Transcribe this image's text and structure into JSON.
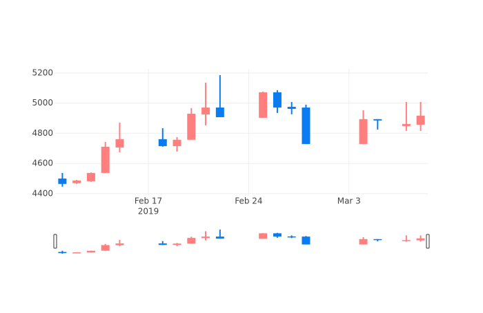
{
  "chart_data": {
    "type": "candlestick",
    "x": [
      "2019-02-11",
      "2019-02-12",
      "2019-02-13",
      "2019-02-14",
      "2019-02-15",
      "2019-02-18",
      "2019-02-19",
      "2019-02-20",
      "2019-02-21",
      "2019-02-22",
      "2019-02-25",
      "2019-02-26",
      "2019-02-27",
      "2019-02-28",
      "2019-03-04",
      "2019-03-05",
      "2019-03-07",
      "2019-03-08"
    ],
    "open": [
      4500,
      4469,
      4482,
      4537,
      4706,
      4761,
      4715,
      4757,
      4925,
      4971,
      4903,
      5072,
      4976,
      4971,
      4729,
      4894,
      4848,
      4857
    ],
    "high": [
      4537,
      4491,
      4540,
      4743,
      4871,
      4834,
      4775,
      4967,
      5136,
      5186,
      5077,
      5086,
      5008,
      4990,
      4953,
      4894,
      5008,
      5008
    ],
    "low": [
      4446,
      4464,
      4478,
      4537,
      4674,
      4711,
      4679,
      4757,
      4853,
      4907,
      4903,
      4935,
      4926,
      4729,
      4729,
      4825,
      4816,
      4816
    ],
    "close": [
      4464,
      4487,
      4537,
      4711,
      4761,
      4715,
      4757,
      4930,
      4971,
      4907,
      5072,
      4971,
      4962,
      4729,
      4894,
      4885,
      4862,
      4917
    ],
    "increasing_color": "#ff7f7f",
    "decreasing_color": "#0b7cf0",
    "xlim": [
      "2019-02-10T12:00:00Z",
      "2019-03-08T12:00:00Z"
    ],
    "xticks": [
      {
        "value": "2019-02-17",
        "label": "Feb 17"
      },
      {
        "value": "2019-02-24",
        "label": "Feb 24"
      },
      {
        "value": "2019-03-03",
        "label": "Mar 3"
      }
    ],
    "xtick_year": "2019",
    "ylim": [
      4390,
      5227
    ],
    "yticks": [
      4400,
      4600,
      4800,
      5000,
      5200
    ],
    "grid": true,
    "range_slider": true
  }
}
